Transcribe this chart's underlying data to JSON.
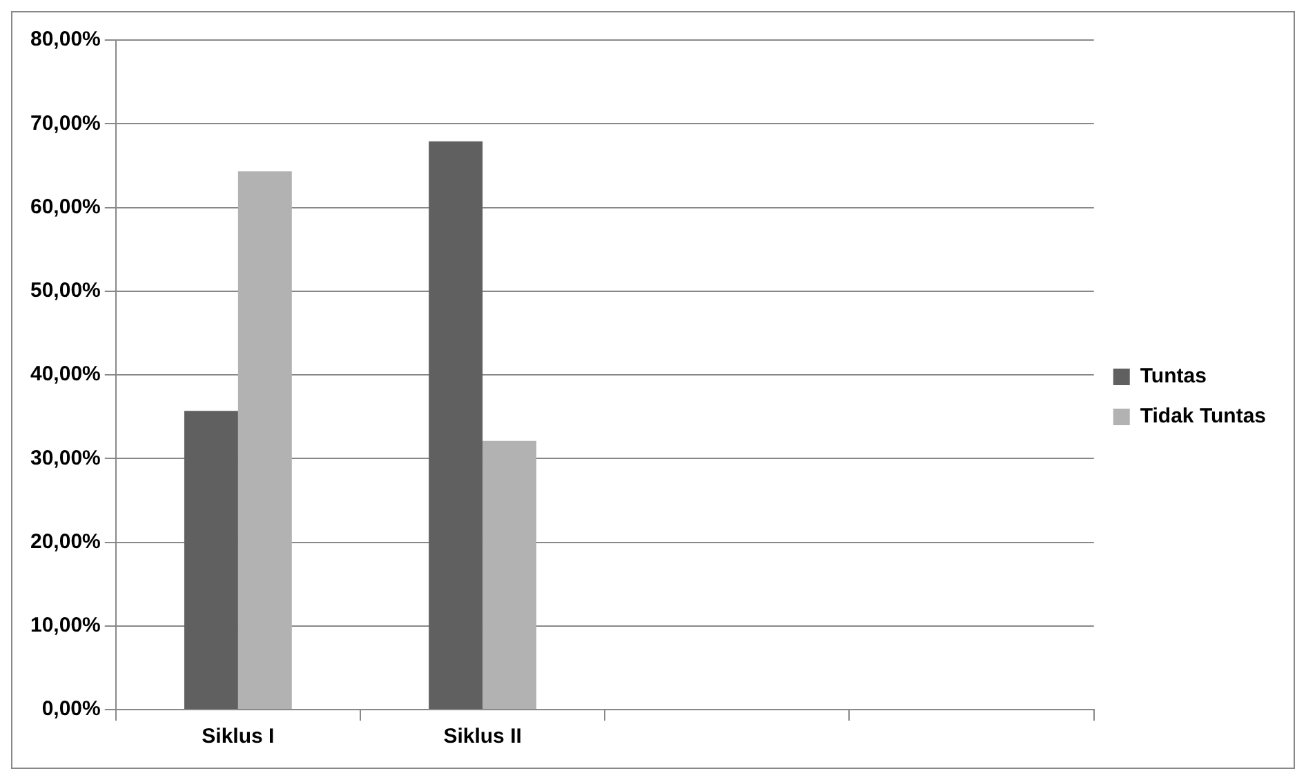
{
  "chart_data": {
    "type": "bar",
    "categories": [
      "Siklus I",
      "Siklus II",
      null,
      null
    ],
    "series": [
      {
        "name": "Tuntas",
        "color": "#606060",
        "values": [
          35.7,
          67.9,
          null,
          null
        ]
      },
      {
        "name": "Tidak Tuntas",
        "color": "#b2b2b2",
        "values": [
          64.3,
          32.1,
          null,
          null
        ]
      }
    ],
    "ylim": [
      0,
      80
    ],
    "yticks": [
      {
        "value": 0,
        "label": "0,00%"
      },
      {
        "value": 10,
        "label": "10,00%"
      },
      {
        "value": 20,
        "label": "20,00%"
      },
      {
        "value": 30,
        "label": "30,00%"
      },
      {
        "value": 40,
        "label": "40,00%"
      },
      {
        "value": 50,
        "label": "50,00%"
      },
      {
        "value": 60,
        "label": "60,00%"
      },
      {
        "value": 70,
        "label": "70,00%"
      },
      {
        "value": 80,
        "label": "80,00%"
      }
    ],
    "grid": "y",
    "legend": "right"
  }
}
